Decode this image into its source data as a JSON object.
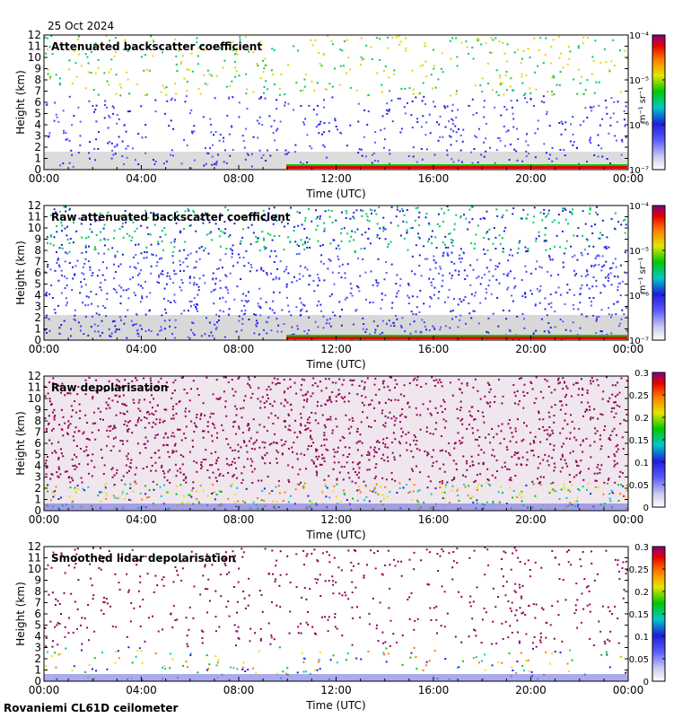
{
  "header": {
    "date": "25 Oct 2024"
  },
  "footer": {
    "site": "Rovaniemi CL61D ceilometer"
  },
  "chart_data": [
    {
      "type": "heatmap",
      "title": "Attenuated backscatter coefficient",
      "xlabel": "Time (UTC)",
      "ylabel": "Height (km)",
      "x_ticks": [
        "00:00",
        "04:00",
        "08:00",
        "12:00",
        "16:00",
        "20:00",
        "00:00"
      ],
      "x_range_hours": [
        0,
        24
      ],
      "y_ticks": [
        0,
        1,
        2,
        3,
        4,
        5,
        6,
        7,
        8,
        9,
        10,
        11,
        12
      ],
      "ylim": [
        0,
        12
      ],
      "colorbar": {
        "scale": "log",
        "units": "m⁻¹ sr⁻¹",
        "ticks": [
          "10⁻⁷",
          "10⁻⁶",
          "10⁻⁵",
          "10⁻⁴"
        ]
      }
    },
    {
      "type": "heatmap",
      "title": "Raw attenuated backscatter coefficient",
      "xlabel": "Time (UTC)",
      "ylabel": "Height (km)",
      "x_ticks": [
        "00:00",
        "04:00",
        "08:00",
        "12:00",
        "16:00",
        "20:00",
        "00:00"
      ],
      "x_range_hours": [
        0,
        24
      ],
      "y_ticks": [
        0,
        1,
        2,
        3,
        4,
        5,
        6,
        7,
        8,
        9,
        10,
        11,
        12
      ],
      "ylim": [
        0,
        12
      ],
      "colorbar": {
        "scale": "log",
        "units": "m⁻¹ sr⁻¹",
        "ticks": [
          "10⁻⁷",
          "10⁻⁶",
          "10⁻⁵",
          "10⁻⁴"
        ]
      }
    },
    {
      "type": "heatmap",
      "title": "Raw depolarisation",
      "xlabel": "Time (UTC)",
      "ylabel": "Height (km)",
      "x_ticks": [
        "00:00",
        "04:00",
        "08:00",
        "12:00",
        "16:00",
        "20:00",
        "00:00"
      ],
      "x_range_hours": [
        0,
        24
      ],
      "y_ticks": [
        0,
        1,
        2,
        3,
        4,
        5,
        6,
        7,
        8,
        9,
        10,
        11,
        12
      ],
      "ylim": [
        0,
        12
      ],
      "colorbar": {
        "scale": "linear",
        "units": "",
        "range": [
          0,
          0.3
        ],
        "ticks": [
          "0",
          "0.05",
          "0.1",
          "0.15",
          "0.2",
          "0.25",
          "0.3"
        ]
      }
    },
    {
      "type": "heatmap",
      "title": "Smoothed lidar depolarisation",
      "xlabel": "Time (UTC)",
      "ylabel": "Height (km)",
      "x_ticks": [
        "00:00",
        "04:00",
        "08:00",
        "12:00",
        "16:00",
        "20:00",
        "00:00"
      ],
      "x_range_hours": [
        0,
        24
      ],
      "y_ticks": [
        0,
        1,
        2,
        3,
        4,
        5,
        6,
        7,
        8,
        9,
        10,
        11,
        12
      ],
      "ylim": [
        0,
        12
      ],
      "colorbar": {
        "scale": "linear",
        "units": "",
        "range": [
          0,
          0.3
        ],
        "ticks": [
          "0",
          "0.05",
          "0.1",
          "0.15",
          "0.2",
          "0.25",
          "0.3"
        ]
      }
    }
  ]
}
